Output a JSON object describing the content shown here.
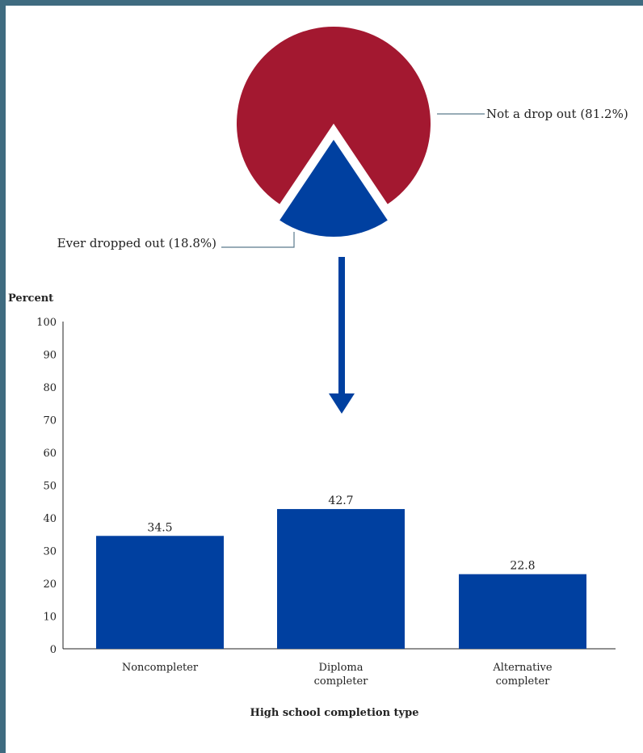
{
  "chart_data": [
    {
      "type": "pie",
      "slices": [
        {
          "label": "Not a drop out (81.2%)",
          "value": 81.2,
          "color": "#a31830"
        },
        {
          "label": "Ever dropped out (18.8%)",
          "value": 18.8,
          "color": "#0040a0",
          "exploded": true
        }
      ]
    },
    {
      "type": "bar",
      "categories": [
        "Noncompleter",
        "Diploma completer",
        "Alternative completer"
      ],
      "category_lines": [
        [
          "Noncompleter"
        ],
        [
          "Diploma",
          "completer"
        ],
        [
          "Alternative",
          "completer"
        ]
      ],
      "values": [
        34.5,
        42.7,
        22.8
      ],
      "value_labels": [
        "34.5",
        "42.7",
        "22.8"
      ],
      "ylabel": "Percent",
      "xlabel": "High school completion type",
      "ylim": [
        0,
        100
      ],
      "yticks": [
        "0",
        "10",
        "20",
        "30",
        "40",
        "50",
        "60",
        "70",
        "80",
        "90",
        "100"
      ],
      "bar_color": "#0040a0",
      "grid": false
    }
  ],
  "colors": {
    "frame": "#3f6b80",
    "arrow": "#0040a0",
    "leader": "#5a7a8c"
  }
}
